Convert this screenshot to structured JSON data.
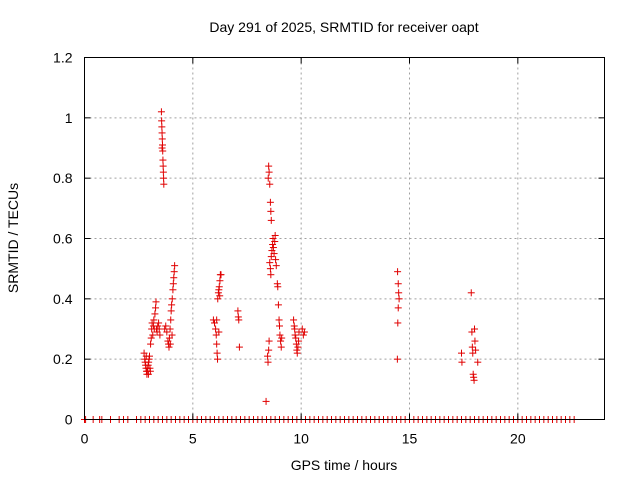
{
  "chart_data": {
    "type": "scatter",
    "title": "Day 291 of 2025, SRMTID for receiver oapt",
    "xlabel": "GPS time / hours",
    "ylabel": "SRMTID / TECUs",
    "xlim": [
      0,
      24
    ],
    "ylim": [
      0,
      1.2
    ],
    "x_ticks": [
      "0",
      "5",
      "10",
      "15",
      "20"
    ],
    "x_tick_values": [
      0,
      5,
      10,
      15,
      20
    ],
    "y_ticks": [
      "0",
      "0.2",
      "0.4",
      "0.6",
      "0.8",
      "1",
      "1.2"
    ],
    "y_tick_values": [
      0,
      0.2,
      0.4,
      0.6,
      0.8,
      1.0,
      1.2
    ],
    "grid": true,
    "marker": "plus",
    "color": "#e00000",
    "baseline_points": {
      "y": 0,
      "x": [
        0.0,
        0.05,
        0.4,
        0.7,
        0.8,
        1.2,
        1.6,
        1.8,
        2.0,
        2.4,
        2.6,
        2.8,
        3.0,
        3.2,
        3.4,
        3.6,
        3.8,
        4.0,
        4.2,
        4.4,
        4.6,
        4.8,
        5.0,
        5.2,
        5.4,
        5.6,
        5.8,
        6.0,
        6.2,
        6.4,
        6.6,
        6.8,
        7.0,
        7.2,
        7.4,
        7.6,
        7.8,
        8.0,
        8.2,
        8.4,
        8.6,
        8.8,
        9.0,
        9.2,
        9.4,
        9.6,
        9.8,
        10.0,
        10.2,
        10.4,
        10.6,
        10.8,
        11.0,
        11.2,
        11.4,
        11.6,
        11.8,
        12.0,
        12.2,
        12.4,
        12.6,
        12.8,
        13.0,
        13.2,
        13.4,
        13.6,
        13.8,
        14.0,
        14.2,
        14.4,
        14.6,
        14.8,
        15.0,
        15.2,
        15.4,
        15.6,
        15.8,
        16.0,
        16.2,
        16.4,
        16.6,
        16.8,
        17.0,
        17.2,
        17.4,
        17.6,
        17.8,
        18.0,
        18.2,
        18.4,
        18.6,
        18.8,
        19.0,
        19.2,
        19.4,
        19.6,
        19.8,
        20.0,
        20.2,
        20.4,
        20.6,
        20.8,
        21.0,
        21.2,
        21.4,
        21.6,
        21.8,
        22.0,
        22.2,
        22.4,
        22.6
      ]
    },
    "points": [
      [
        2.75,
        0.22
      ],
      [
        2.78,
        0.2
      ],
      [
        2.8,
        0.19
      ],
      [
        2.82,
        0.18
      ],
      [
        2.84,
        0.17
      ],
      [
        2.86,
        0.16
      ],
      [
        2.88,
        0.15
      ],
      [
        2.9,
        0.16
      ],
      [
        2.92,
        0.17
      ],
      [
        2.94,
        0.18
      ],
      [
        2.96,
        0.19
      ],
      [
        2.98,
        0.2
      ],
      [
        3.0,
        0.21
      ],
      [
        3.02,
        0.17
      ],
      [
        3.04,
        0.16
      ],
      [
        2.85,
        0.21
      ],
      [
        2.95,
        0.15
      ],
      [
        3.05,
        0.25
      ],
      [
        3.08,
        0.27
      ],
      [
        3.1,
        0.3
      ],
      [
        3.12,
        0.32
      ],
      [
        3.15,
        0.28
      ],
      [
        3.18,
        0.31
      ],
      [
        3.2,
        0.33
      ],
      [
        3.22,
        0.3
      ],
      [
        3.25,
        0.35
      ],
      [
        3.28,
        0.37
      ],
      [
        3.3,
        0.39
      ],
      [
        3.32,
        0.3
      ],
      [
        3.35,
        0.29
      ],
      [
        3.38,
        0.31
      ],
      [
        3.42,
        0.32
      ],
      [
        3.45,
        0.3
      ],
      [
        3.48,
        0.28
      ],
      [
        3.55,
        1.02
      ],
      [
        3.56,
        0.99
      ],
      [
        3.57,
        0.97
      ],
      [
        3.58,
        0.95
      ],
      [
        3.59,
        0.93
      ],
      [
        3.6,
        0.91
      ],
      [
        3.61,
        0.89
      ],
      [
        3.62,
        0.86
      ],
      [
        3.63,
        0.84
      ],
      [
        3.64,
        0.82
      ],
      [
        3.65,
        0.8
      ],
      [
        3.66,
        0.78
      ],
      [
        3.58,
        0.9
      ],
      [
        3.7,
        0.3
      ],
      [
        3.75,
        0.31
      ],
      [
        3.8,
        0.29
      ],
      [
        3.85,
        0.26
      ],
      [
        3.88,
        0.25
      ],
      [
        3.9,
        0.24
      ],
      [
        3.92,
        0.27
      ],
      [
        3.95,
        0.3
      ],
      [
        3.98,
        0.33
      ],
      [
        4.0,
        0.36
      ],
      [
        4.02,
        0.38
      ],
      [
        4.05,
        0.4
      ],
      [
        4.08,
        0.43
      ],
      [
        4.1,
        0.45
      ],
      [
        4.12,
        0.47
      ],
      [
        4.14,
        0.49
      ],
      [
        4.16,
        0.51
      ],
      [
        3.96,
        0.25
      ],
      [
        4.04,
        0.28
      ],
      [
        5.95,
        0.33
      ],
      [
        6.0,
        0.32
      ],
      [
        6.05,
        0.3
      ],
      [
        6.08,
        0.28
      ],
      [
        6.1,
        0.25
      ],
      [
        6.12,
        0.22
      ],
      [
        6.14,
        0.2
      ],
      [
        6.1,
        0.33
      ],
      [
        6.15,
        0.4
      ],
      [
        6.18,
        0.42
      ],
      [
        6.2,
        0.43
      ],
      [
        6.22,
        0.44
      ],
      [
        6.25,
        0.46
      ],
      [
        6.27,
        0.48
      ],
      [
        6.3,
        0.48
      ],
      [
        6.24,
        0.41
      ],
      [
        6.2,
        0.29
      ],
      [
        7.08,
        0.36
      ],
      [
        7.1,
        0.34
      ],
      [
        7.12,
        0.33
      ],
      [
        7.15,
        0.24
      ],
      [
        8.38,
        0.06
      ],
      [
        8.45,
        0.21
      ],
      [
        8.47,
        0.19
      ],
      [
        8.5,
        0.23
      ],
      [
        8.52,
        0.26
      ],
      [
        8.48,
        0.8
      ],
      [
        8.5,
        0.84
      ],
      [
        8.52,
        0.82
      ],
      [
        8.55,
        0.78
      ],
      [
        8.58,
        0.72
      ],
      [
        8.6,
        0.69
      ],
      [
        8.62,
        0.66
      ],
      [
        8.55,
        0.52
      ],
      [
        8.58,
        0.5
      ],
      [
        8.6,
        0.48
      ],
      [
        8.62,
        0.54
      ],
      [
        8.65,
        0.56
      ],
      [
        8.68,
        0.58
      ],
      [
        8.7,
        0.6
      ],
      [
        8.72,
        0.57
      ],
      [
        8.75,
        0.55
      ],
      [
        8.78,
        0.59
      ],
      [
        8.8,
        0.61
      ],
      [
        8.82,
        0.53
      ],
      [
        8.85,
        0.51
      ],
      [
        8.9,
        0.45
      ],
      [
        8.92,
        0.44
      ],
      [
        8.95,
        0.38
      ],
      [
        8.98,
        0.33
      ],
      [
        9.0,
        0.31
      ],
      [
        9.02,
        0.28
      ],
      [
        9.05,
        0.26
      ],
      [
        9.08,
        0.24
      ],
      [
        9.1,
        0.27
      ],
      [
        9.65,
        0.33
      ],
      [
        9.68,
        0.31
      ],
      [
        9.7,
        0.3
      ],
      [
        9.72,
        0.28
      ],
      [
        9.75,
        0.27
      ],
      [
        9.78,
        0.25
      ],
      [
        9.8,
        0.23
      ],
      [
        9.82,
        0.22
      ],
      [
        9.85,
        0.24
      ],
      [
        9.88,
        0.26
      ],
      [
        9.9,
        0.29
      ],
      [
        10.05,
        0.3
      ],
      [
        10.1,
        0.28
      ],
      [
        10.15,
        0.29
      ],
      [
        14.45,
        0.49
      ],
      [
        14.48,
        0.45
      ],
      [
        14.5,
        0.42
      ],
      [
        14.52,
        0.4
      ],
      [
        14.48,
        0.37
      ],
      [
        14.46,
        0.32
      ],
      [
        14.44,
        0.2
      ],
      [
        17.4,
        0.22
      ],
      [
        17.42,
        0.19
      ],
      [
        17.85,
        0.42
      ],
      [
        17.88,
        0.29
      ],
      [
        17.9,
        0.24
      ],
      [
        17.92,
        0.22
      ],
      [
        17.94,
        0.15
      ],
      [
        17.96,
        0.14
      ],
      [
        17.98,
        0.13
      ],
      [
        18.0,
        0.3
      ],
      [
        18.02,
        0.26
      ],
      [
        18.05,
        0.23
      ],
      [
        18.15,
        0.19
      ]
    ]
  }
}
